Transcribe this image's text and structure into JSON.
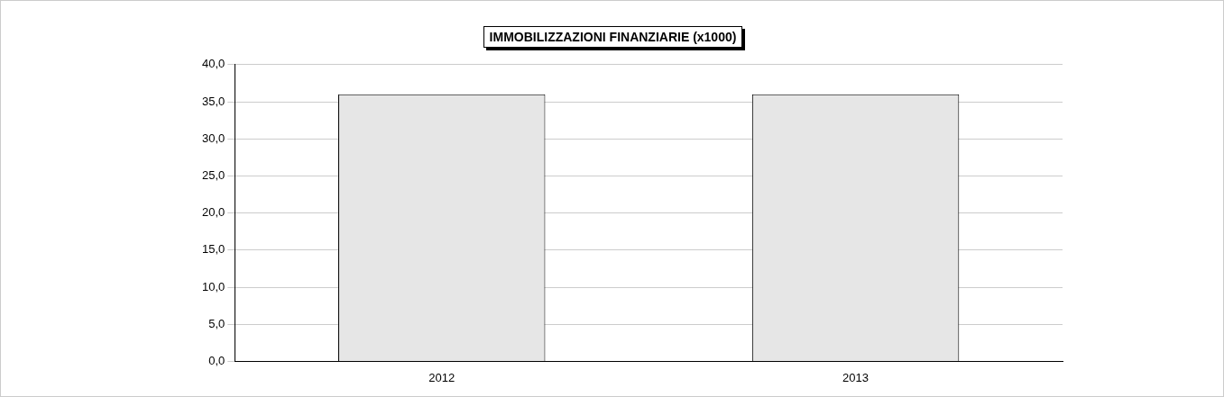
{
  "chart_data": {
    "type": "bar",
    "title": "IMMOBILIZZAZIONI FINANZIARIE (x1000)",
    "categories": [
      "2012",
      "2013"
    ],
    "values": [
      36.0,
      36.0
    ],
    "color": "#e6e6e6",
    "ylim": [
      0,
      40
    ],
    "yticks": [
      {
        "value": 0,
        "label": "0,0"
      },
      {
        "value": 5,
        "label": "5,0"
      },
      {
        "value": 10,
        "label": "10,0"
      },
      {
        "value": 15,
        "label": "15,0"
      },
      {
        "value": 20,
        "label": "20,0"
      },
      {
        "value": 25,
        "label": "25,0"
      },
      {
        "value": 30,
        "label": "30,0"
      },
      {
        "value": 35,
        "label": "35,0"
      },
      {
        "value": 40,
        "label": "40,0"
      }
    ],
    "grid": "y"
  }
}
